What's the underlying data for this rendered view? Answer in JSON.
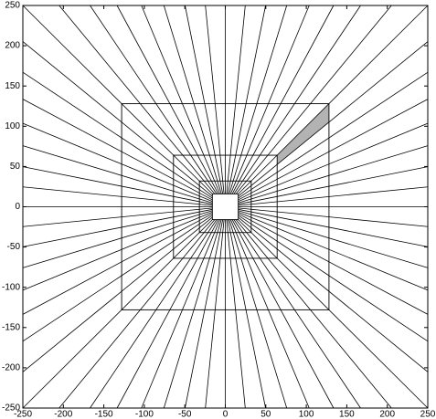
{
  "chart_data": {
    "type": "polar-grid",
    "xlim": [
      -250,
      250
    ],
    "ylim": [
      -250,
      250
    ],
    "xticks": [
      -250,
      -200,
      -150,
      -100,
      -50,
      0,
      50,
      100,
      150,
      200,
      250
    ],
    "yticks": [
      -250,
      -200,
      -150,
      -100,
      -50,
      0,
      50,
      100,
      150,
      200,
      250
    ],
    "squares": [
      16,
      32,
      64,
      128
    ],
    "ray_count": 64,
    "shaded": {
      "inner": 64,
      "outer": 128,
      "ray_from": 7,
      "ray_to": 8,
      "color": "#b3b3b3"
    },
    "line_color": "#000000"
  }
}
